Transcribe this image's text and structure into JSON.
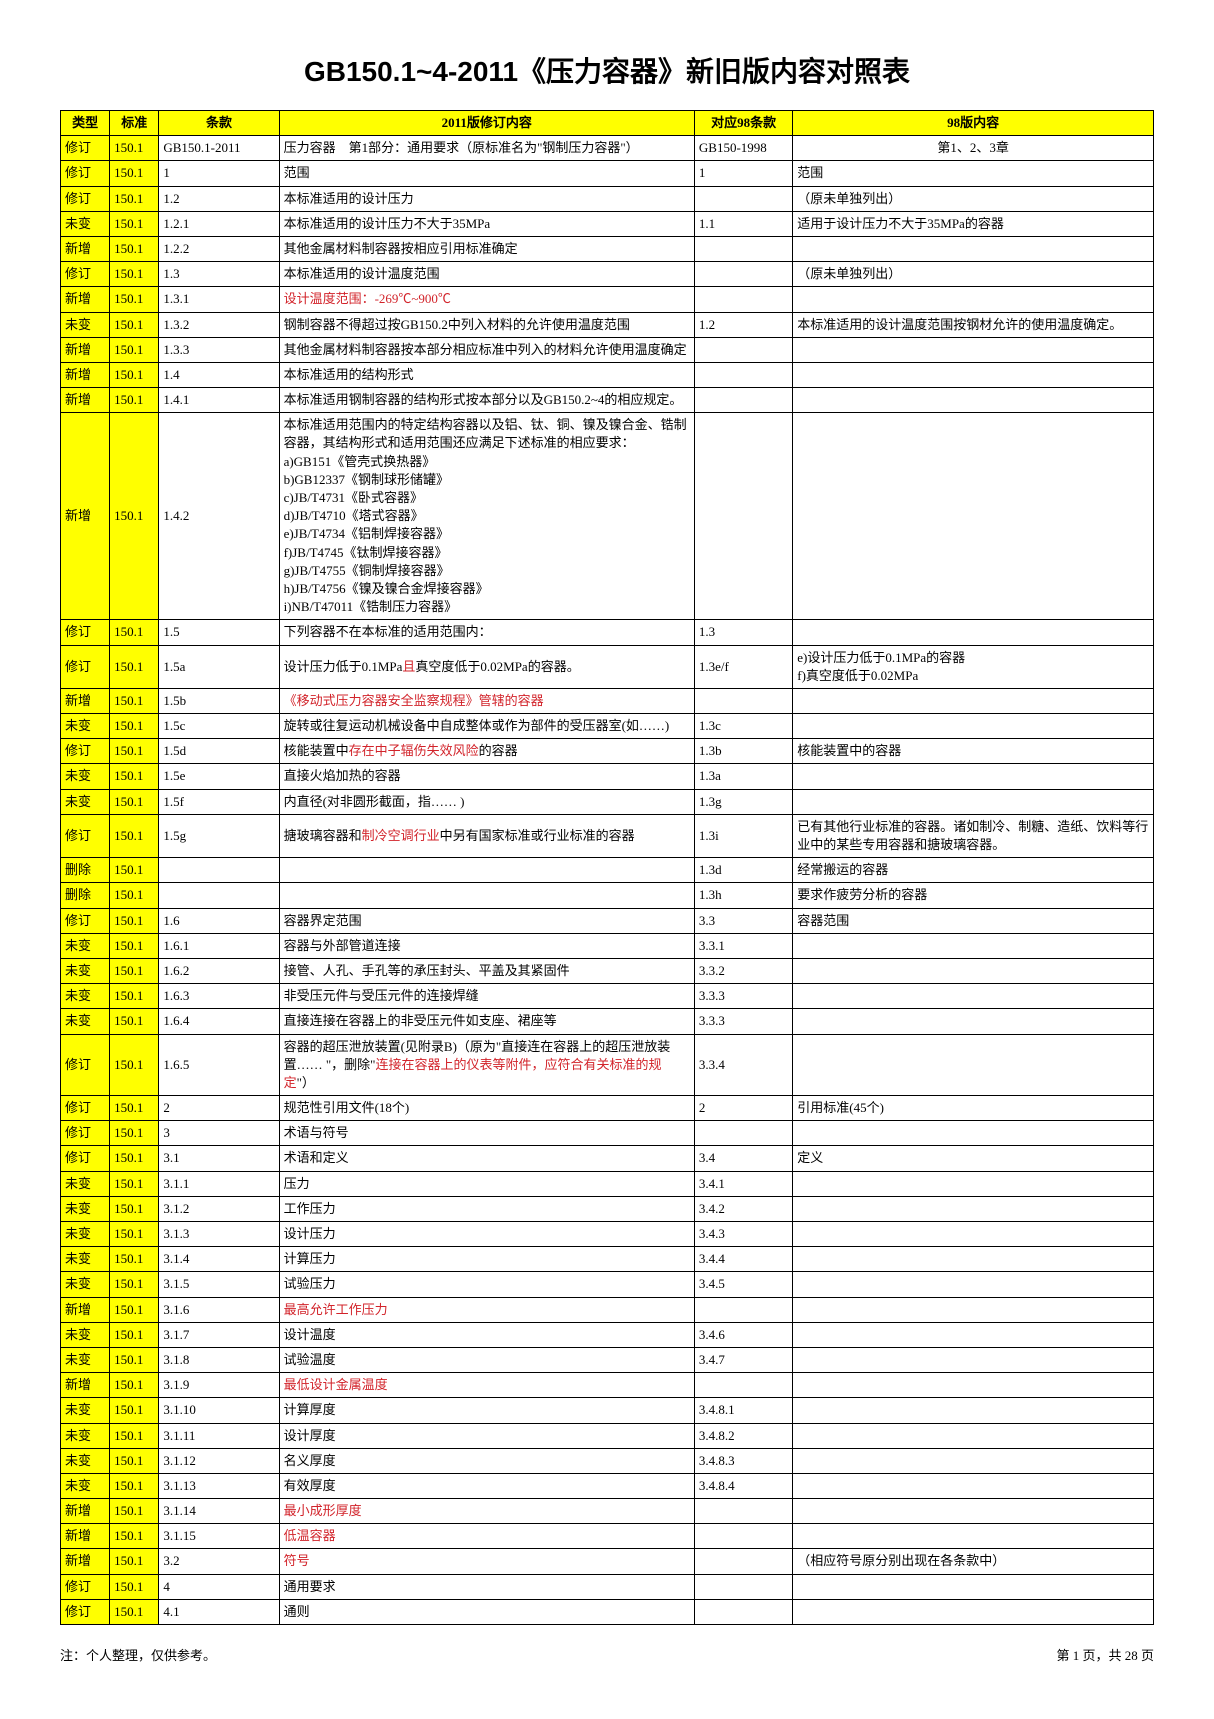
{
  "title": "GB150.1~4-2011《压力容器》新旧版内容对照表",
  "headers": {
    "type": "类型",
    "std": "标准",
    "clause": "条款",
    "c2011": "2011版修订内容",
    "c98clause": "对应98条款",
    "c98": "98版内容"
  },
  "footer": {
    "left": "注：个人整理，仅供参考。",
    "right": "第 1 页，共 28 页"
  },
  "rows": [
    {
      "type": "修订",
      "std": "150.1",
      "clause": "GB150.1-2011",
      "c2011": "压力容器　第1部分：通用要求（原标准名为\"钢制压力容器\"）",
      "c98c": "GB150-1998",
      "c98": "第1、2、3章",
      "hl": true,
      "c98center": true
    },
    {
      "type": "修订",
      "std": "150.1",
      "clause": "1",
      "c2011": "范围",
      "c98c": "1",
      "c98": "范围",
      "hl": true
    },
    {
      "type": "修订",
      "std": "150.1",
      "clause": "1.2",
      "c2011": "本标准适用的设计压力",
      "c98c": "",
      "c98": "（原未单独列出）",
      "hl": true
    },
    {
      "type": "未变",
      "std": "150.1",
      "clause": "1.2.1",
      "c2011": "本标准适用的设计压力不大于35MPa",
      "c98c": "1.1",
      "c98": "适用于设计压力不大于35MPa的容器",
      "hl": true
    },
    {
      "type": "新增",
      "std": "150.1",
      "clause": "1.2.2",
      "c2011": "其他金属材料制容器按相应引用标准确定",
      "c98c": "",
      "c98": "",
      "hl": true
    },
    {
      "type": "修订",
      "std": "150.1",
      "clause": "1.3",
      "c2011": "本标准适用的设计温度范围",
      "c98c": "",
      "c98": "（原未单独列出）",
      "hl": true
    },
    {
      "type": "新增",
      "std": "150.1",
      "clause": "1.3.1",
      "c2011": "<span class=\"red\">设计温度范围：-269℃~900℃</span>",
      "c98c": "",
      "c98": "",
      "hl": true
    },
    {
      "type": "未变",
      "std": "150.1",
      "clause": "1.3.2",
      "c2011": "钢制容器不得超过按GB150.2中列入材料的允许使用温度范围",
      "c98c": "1.2",
      "c98": "本标准适用的设计温度范围按钢材允许的使用温度确定。",
      "hl": true
    },
    {
      "type": "新增",
      "std": "150.1",
      "clause": "1.3.3",
      "c2011": "其他金属材料制容器按本部分相应标准中列入的材料允许使用温度确定",
      "c98c": "",
      "c98": "",
      "hl": true
    },
    {
      "type": "新增",
      "std": "150.1",
      "clause": "1.4",
      "c2011": "本标准适用的结构形式",
      "c98c": "",
      "c98": "",
      "hl": true
    },
    {
      "type": "新增",
      "std": "150.1",
      "clause": "1.4.1",
      "c2011": "本标准适用钢制容器的结构形式按本部分以及GB150.2~4的相应规定。",
      "c98c": "",
      "c98": "",
      "hl": true
    },
    {
      "type": "新增",
      "std": "150.1",
      "clause": "1.4.2",
      "c2011": "本标准适用范围内的特定结构容器以及铝、钛、铜、镍及镍合金、锆制容器，其结构形式和适用范围还应满足下述标准的相应要求：\na)GB151《管壳式换热器》\nb)GB12337《钢制球形储罐》\nc)JB/T4731《卧式容器》\nd)JB/T4710《塔式容器》\ne)JB/T4734《铝制焊接容器》\nf)JB/T4745《钛制焊接容器》\ng)JB/T4755《铜制焊接容器》\nh)JB/T4756《镍及镍合金焊接容器》\ni)NB/T47011《锆制压力容器》",
      "c98c": "",
      "c98": "",
      "hl": true,
      "pre": true
    },
    {
      "type": "修订",
      "std": "150.1",
      "clause": "1.5",
      "c2011": "下列容器不在本标准的适用范围内：",
      "c98c": "1.3",
      "c98": "",
      "hl": true
    },
    {
      "type": "修订",
      "std": "150.1",
      "clause": "1.5a",
      "c2011": "设计压力低于0.1MPa<span class=\"red\">且</span>真空度低于0.02MPa的容器。",
      "c98c": "1.3e/f",
      "c98": "e)设计压力低于0.1MPa的容器\nf)真空度低于0.02MPa",
      "hl": true,
      "c98pre": true
    },
    {
      "type": "新增",
      "std": "150.1",
      "clause": "1.5b",
      "c2011": "<span class=\"red\">《移动式压力容器安全监察规程》管辖的容器</span>",
      "c98c": "",
      "c98": "",
      "hl": true
    },
    {
      "type": "未变",
      "std": "150.1",
      "clause": "1.5c",
      "c2011": "旋转或往复运动机械设备中自成整体或作为部件的受压器室(如……)",
      "c98c": "1.3c",
      "c98": "",
      "hl": true
    },
    {
      "type": "修订",
      "std": "150.1",
      "clause": "1.5d",
      "c2011": "核能装置中<span class=\"red\">存在中子辐伤失效风险</span>的容器",
      "c98c": "1.3b",
      "c98": "核能装置中的容器",
      "hl": true
    },
    {
      "type": "未变",
      "std": "150.1",
      "clause": "1.5e",
      "c2011": "直接火焰加热的容器",
      "c98c": "1.3a",
      "c98": "",
      "hl": true
    },
    {
      "type": "未变",
      "std": "150.1",
      "clause": "1.5f",
      "c2011": "内直径(对非圆形截面，指…… )",
      "c98c": "1.3g",
      "c98": "",
      "hl": true
    },
    {
      "type": "修订",
      "std": "150.1",
      "clause": "1.5g",
      "c2011": "搪玻璃容器和<span class=\"red\">制冷空调行业</span>中另有国家标准或行业标准的容器",
      "c98c": "1.3i",
      "c98": "已有其他行业标准的容器。诸如制冷、制糖、造纸、饮料等行业中的某些专用容器和搪玻璃容器。",
      "hl": true
    },
    {
      "type": "删除",
      "std": "150.1",
      "clause": "",
      "c2011": "",
      "c98c": "1.3d",
      "c98": "经常搬运的容器",
      "hl": true
    },
    {
      "type": "删除",
      "std": "150.1",
      "clause": "",
      "c2011": "",
      "c98c": "1.3h",
      "c98": "要求作疲劳分析的容器",
      "hl": true
    },
    {
      "type": "修订",
      "std": "150.1",
      "clause": "1.6",
      "c2011": "容器界定范围",
      "c98c": "3.3",
      "c98": "容器范围",
      "hl": true
    },
    {
      "type": "未变",
      "std": "150.1",
      "clause": "1.6.1",
      "c2011": "容器与外部管道连接",
      "c98c": "3.3.1",
      "c98": "",
      "hl": true
    },
    {
      "type": "未变",
      "std": "150.1",
      "clause": "1.6.2",
      "c2011": "接管、人孔、手孔等的承压封头、平盖及其紧固件",
      "c98c": "3.3.2",
      "c98": "",
      "hl": true
    },
    {
      "type": "未变",
      "std": "150.1",
      "clause": "1.6.3",
      "c2011": "非受压元件与受压元件的连接焊缝",
      "c98c": "3.3.3",
      "c98": "",
      "hl": true
    },
    {
      "type": "未变",
      "std": "150.1",
      "clause": "1.6.4",
      "c2011": "直接连接在容器上的非受压元件如支座、裙座等",
      "c98c": "3.3.3",
      "c98": "",
      "hl": true
    },
    {
      "type": "修订",
      "std": "150.1",
      "clause": "1.6.5",
      "c2011": "容器的超压泄放装置(见附录B)（原为\"直接连在容器上的超压泄放装置…… \"，删除\"<span class=\"red\">连接在容器上的仪表等附件，应符合有关标准的规定</span>\"）",
      "c98c": "3.3.4",
      "c98": "",
      "hl": true
    },
    {
      "type": "修订",
      "std": "150.1",
      "clause": "2",
      "c2011": "规范性引用文件(18个)",
      "c98c": "2",
      "c98": "引用标准(45个)",
      "hl": true
    },
    {
      "type": "修订",
      "std": "150.1",
      "clause": "3",
      "c2011": "术语与符号",
      "c98c": "",
      "c98": "",
      "hl": true
    },
    {
      "type": "修订",
      "std": "150.1",
      "clause": "3.1",
      "c2011": "术语和定义",
      "c98c": "3.4",
      "c98": "定义",
      "hl": true
    },
    {
      "type": "未变",
      "std": "150.1",
      "clause": "3.1.1",
      "c2011": "压力",
      "c98c": "3.4.1",
      "c98": "",
      "hl": true
    },
    {
      "type": "未变",
      "std": "150.1",
      "clause": "3.1.2",
      "c2011": "工作压力",
      "c98c": "3.4.2",
      "c98": "",
      "hl": true
    },
    {
      "type": "未变",
      "std": "150.1",
      "clause": "3.1.3",
      "c2011": "设计压力",
      "c98c": "3.4.3",
      "c98": "",
      "hl": true
    },
    {
      "type": "未变",
      "std": "150.1",
      "clause": "3.1.4",
      "c2011": "计算压力",
      "c98c": "3.4.4",
      "c98": "",
      "hl": true
    },
    {
      "type": "未变",
      "std": "150.1",
      "clause": "3.1.5",
      "c2011": "试验压力",
      "c98c": "3.4.5",
      "c98": "",
      "hl": true
    },
    {
      "type": "新增",
      "std": "150.1",
      "clause": "3.1.6",
      "c2011": "<span class=\"red\">最高允许工作压力</span>",
      "c98c": "",
      "c98": "",
      "hl": true
    },
    {
      "type": "未变",
      "std": "150.1",
      "clause": "3.1.7",
      "c2011": "设计温度",
      "c98c": "3.4.6",
      "c98": "",
      "hl": true
    },
    {
      "type": "未变",
      "std": "150.1",
      "clause": "3.1.8",
      "c2011": "试验温度",
      "c98c": "3.4.7",
      "c98": "",
      "hl": true
    },
    {
      "type": "新增",
      "std": "150.1",
      "clause": "3.1.9",
      "c2011": "<span class=\"red\">最低设计金属温度</span>",
      "c98c": "",
      "c98": "",
      "hl": true
    },
    {
      "type": "未变",
      "std": "150.1",
      "clause": "3.1.10",
      "c2011": "计算厚度",
      "c98c": "3.4.8.1",
      "c98": "",
      "hl": true
    },
    {
      "type": "未变",
      "std": "150.1",
      "clause": "3.1.11",
      "c2011": "设计厚度",
      "c98c": "3.4.8.2",
      "c98": "",
      "hl": true
    },
    {
      "type": "未变",
      "std": "150.1",
      "clause": "3.1.12",
      "c2011": "名义厚度",
      "c98c": "3.4.8.3",
      "c98": "",
      "hl": true
    },
    {
      "type": "未变",
      "std": "150.1",
      "clause": "3.1.13",
      "c2011": "有效厚度",
      "c98c": "3.4.8.4",
      "c98": "",
      "hl": true
    },
    {
      "type": "新增",
      "std": "150.1",
      "clause": "3.1.14",
      "c2011": "<span class=\"red\">最小成形厚度</span>",
      "c98c": "",
      "c98": "",
      "hl": true
    },
    {
      "type": "新增",
      "std": "150.1",
      "clause": "3.1.15",
      "c2011": "<span class=\"red\">低温容器</span>",
      "c98c": "",
      "c98": "",
      "hl": true
    },
    {
      "type": "新增",
      "std": "150.1",
      "clause": "3.2",
      "c2011": "<span class=\"red\">符号</span>",
      "c98c": "",
      "c98": "（相应符号原分别出现在各条款中）",
      "hl": true
    },
    {
      "type": "修订",
      "std": "150.1",
      "clause": "4",
      "c2011": "通用要求",
      "c98c": "",
      "c98": "",
      "hl": true
    },
    {
      "type": "修订",
      "std": "150.1",
      "clause": "4.1",
      "c2011": "通则",
      "c98c": "",
      "c98": "",
      "hl": true
    }
  ]
}
